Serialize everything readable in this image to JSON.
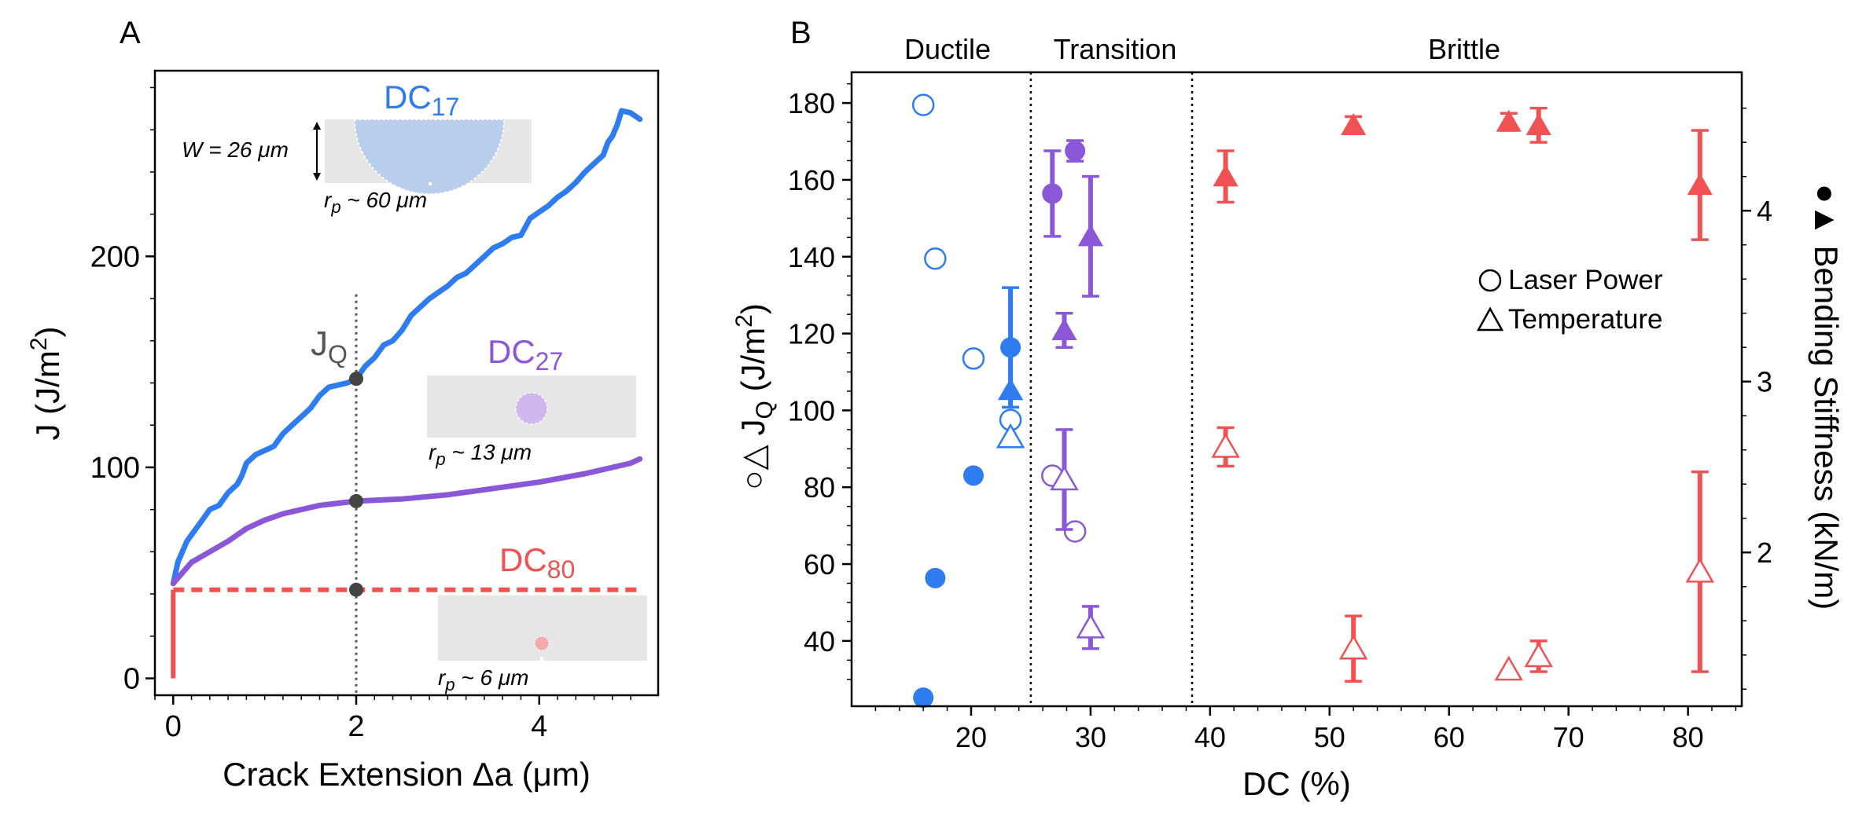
{
  "colors": {
    "blue": "#2e7cf0",
    "purple": "#8b57d9",
    "red": "#f05253",
    "gray_dot": "#444444",
    "inset_bg": "#e6e6e6",
    "inset_blue": "#b9cdec",
    "inset_purple": "#cfb8ee",
    "inset_red": "#f3aaaa"
  },
  "panel_a": {
    "letter": "A",
    "xlabel": "Crack Extension Δa (μm)",
    "ylabel_prefix": "J (J/m",
    "ylabel_sup": "2",
    "ylabel_suffix": ")",
    "jq_label_main": "J",
    "jq_label_sub": "Q",
    "inset_dc17": {
      "label_main": "DC",
      "label_sub": "17",
      "width_label": "W = 26 μm",
      "rp_main": "r",
      "rp_sub": "p",
      "rp_value": " ~ 60 μm"
    },
    "inset_dc27": {
      "label_main": "DC",
      "label_sub": "27",
      "rp_main": "r",
      "rp_sub": "p",
      "rp_value": " ~ 13 μm"
    },
    "inset_dc80": {
      "label_main": "DC",
      "label_sub": "80",
      "rp_main": "r",
      "rp_sub": "p",
      "rp_value": " ~ 6 μm"
    }
  },
  "panel_b": {
    "letter": "B",
    "xlabel": "DC (%)",
    "ylabel_left_prefix": "○△ J",
    "ylabel_left_sub": "Q",
    "ylabel_left_mid": " (J/m",
    "ylabel_left_sup": "2",
    "ylabel_left_suffix": ")",
    "ylabel_right": "●▲ Bending Stiffness (kN/m)",
    "regions": {
      "ductile": "Ductile",
      "transition": "Transition",
      "brittle": "Brittle"
    },
    "legend": {
      "laser_power": "Laser Power",
      "temperature": "Temperature"
    }
  },
  "chart_data": [
    {
      "type": "line",
      "panel": "A",
      "xlabel": "Crack Extension Δa (μm)",
      "ylabel": "J (J/m2)",
      "xlim": [
        -0.2,
        5.3
      ],
      "ylim": [
        -8,
        288
      ],
      "xticks": [
        0,
        2,
        4
      ],
      "yticks": [
        0,
        100,
        200
      ],
      "marker_line_x": 2,
      "series": [
        {
          "name": "DC17",
          "color": "blue",
          "x": [
            0,
            0.05,
            0.1,
            0.15,
            0.2,
            0.3,
            0.4,
            0.5,
            0.6,
            0.65,
            0.7,
            0.75,
            0.8,
            0.9,
            1.0,
            1.05,
            1.1,
            1.2,
            1.3,
            1.4,
            1.5,
            1.6,
            1.7,
            1.8,
            1.9,
            2.0,
            2.1,
            2.2,
            2.3,
            2.4,
            2.5,
            2.6,
            2.7,
            2.8,
            2.9,
            3.0,
            3.1,
            3.2,
            3.3,
            3.4,
            3.5,
            3.6,
            3.7,
            3.8,
            3.85,
            3.9,
            4.0,
            4.1,
            4.2,
            4.3,
            4.4,
            4.5,
            4.6,
            4.7,
            4.75,
            4.8,
            4.85,
            4.9,
            5.0,
            5.1
          ],
          "y": [
            45,
            55,
            60,
            65,
            68,
            74,
            80,
            82,
            88,
            90,
            92,
            96,
            102,
            106,
            108,
            109,
            110,
            116,
            120,
            124,
            128,
            134,
            138,
            139,
            140,
            142,
            148,
            152,
            158,
            160,
            165,
            172,
            176,
            180,
            183,
            186,
            190,
            192,
            196,
            200,
            204,
            206,
            209,
            210,
            214,
            218,
            221,
            224,
            228,
            231,
            235,
            240,
            244,
            248,
            254,
            257,
            262,
            269,
            268,
            265
          ]
        },
        {
          "name": "DC27",
          "color": "purple",
          "x": [
            0,
            0.1,
            0.2,
            0.4,
            0.6,
            0.8,
            1.0,
            1.2,
            1.4,
            1.6,
            1.8,
            2.0,
            2.5,
            3.0,
            3.5,
            4.0,
            4.5,
            5.0,
            5.1
          ],
          "y": [
            45,
            50,
            55,
            60,
            65,
            71,
            75,
            78,
            80,
            82,
            83,
            84,
            85,
            87,
            90,
            93,
            97,
            102,
            104
          ]
        },
        {
          "name": "DC80",
          "color": "red",
          "style": "dashed",
          "x": [
            0,
            5.1
          ],
          "y": [
            42,
            42
          ],
          "vertical_segment": {
            "x": 0,
            "y": [
              0,
              42
            ]
          }
        }
      ],
      "jq_points": [
        {
          "series": "DC17",
          "x": 2,
          "y": 142
        },
        {
          "series": "DC27",
          "x": 2,
          "y": 84
        },
        {
          "series": "DC80",
          "x": 2,
          "y": 42
        }
      ]
    },
    {
      "type": "scatter",
      "panel": "B",
      "xlabel": "DC (%)",
      "ylabel_left": "JQ (J/m2)",
      "ylabel_right": "Bending Stiffness (kN/m)",
      "xlim": [
        10,
        84.5
      ],
      "ylim_left": [
        23,
        188
      ],
      "ylim_right": [
        1.1,
        4.81
      ],
      "xticks": [
        20,
        30,
        40,
        50,
        60,
        70,
        80
      ],
      "yticks_left": [
        40,
        60,
        80,
        100,
        120,
        140,
        160,
        180
      ],
      "yticks_right": [
        2,
        3,
        4
      ],
      "region_boundaries": [
        25,
        38.5
      ],
      "legend_placement": "right-middle",
      "series": [
        {
          "name": "JQ Laser Power",
          "marker": "open-circle",
          "axis": "left",
          "points": [
            {
              "x": 16.0,
              "y": 179.5,
              "color": "blue"
            },
            {
              "x": 17.0,
              "y": 139.5,
              "color": "blue"
            },
            {
              "x": 20.2,
              "y": 113.5,
              "color": "blue"
            },
            {
              "x": 23.3,
              "y": 97.5,
              "color": "blue"
            },
            {
              "x": 26.8,
              "y": 83,
              "color": "purple"
            },
            {
              "x": 28.7,
              "y": 68.5,
              "color": "purple"
            }
          ]
        },
        {
          "name": "JQ Temperature",
          "marker": "open-triangle",
          "axis": "left",
          "points": [
            {
              "x": 23.3,
              "y": 93,
              "color": "blue"
            },
            {
              "x": 27.8,
              "y": 82,
              "err": 13,
              "color": "purple"
            },
            {
              "x": 30.0,
              "y": 43.5,
              "err": 5.5,
              "color": "purple"
            },
            {
              "x": 41.3,
              "y": 90.5,
              "err": 5,
              "color": "red"
            },
            {
              "x": 52.0,
              "y": 38,
              "err": 8.5,
              "color": "red"
            },
            {
              "x": 65.0,
              "y": 32.5,
              "err": 0,
              "color": "red"
            },
            {
              "x": 67.5,
              "y": 36,
              "err": 4,
              "color": "red"
            },
            {
              "x": 81.0,
              "y": 58,
              "err": 26,
              "color": "red"
            }
          ]
        },
        {
          "name": "Bending Stiffness Laser Power",
          "marker": "filled-circle",
          "axis": "right",
          "points": [
            {
              "x": 16.0,
              "y": 1.15,
              "color": "blue"
            },
            {
              "x": 17.0,
              "y": 1.85,
              "color": "blue"
            },
            {
              "x": 20.2,
              "y": 2.45,
              "color": "blue"
            },
            {
              "x": 23.3,
              "y": 3.2,
              "err": 0.35,
              "color": "blue"
            },
            {
              "x": 26.8,
              "y": 4.1,
              "err": 0.25,
              "color": "purple"
            },
            {
              "x": 28.7,
              "y": 4.35,
              "err": 0.06,
              "color": "purple"
            }
          ]
        },
        {
          "name": "Bending Stiffness Temperature",
          "marker": "filled-triangle",
          "axis": "right",
          "points": [
            {
              "x": 23.3,
              "y": 2.95,
              "color": "blue"
            },
            {
              "x": 27.8,
              "y": 3.3,
              "err": 0.1,
              "color": "purple"
            },
            {
              "x": 30.0,
              "y": 3.85,
              "err": 0.35,
              "color": "purple"
            },
            {
              "x": 41.3,
              "y": 4.2,
              "err": 0.15,
              "color": "red"
            },
            {
              "x": 52.0,
              "y": 4.5,
              "err": 0.05,
              "color": "red"
            },
            {
              "x": 65.0,
              "y": 4.52,
              "err": 0.05,
              "color": "red"
            },
            {
              "x": 67.5,
              "y": 4.5,
              "err": 0.1,
              "color": "red"
            },
            {
              "x": 81.0,
              "y": 4.15,
              "err": 0.32,
              "color": "red"
            }
          ]
        }
      ]
    }
  ]
}
